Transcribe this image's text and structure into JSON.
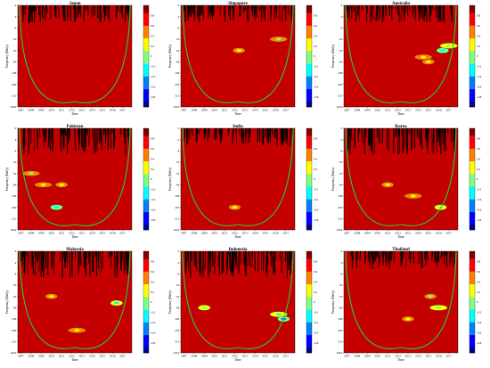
{
  "figure": {
    "colors": {
      "background": "#c40000",
      "coi": "#22cc44",
      "colormap": [
        "#00007f",
        "#0000ff",
        "#007fff",
        "#00ffff",
        "#7fff7f",
        "#ffff00",
        "#ff7f00",
        "#ff0000",
        "#7f0000"
      ]
    }
  },
  "chart_data": [
    {
      "type": "heatmap",
      "title": "Japan",
      "xlabel": "Time",
      "ylabel": "Frequency (Daily)",
      "x_ticks": [
        "2007",
        "2008",
        "2009",
        "2010",
        "2011",
        "2012",
        "2013",
        "2014",
        "2015",
        "2016",
        "2017"
      ],
      "y_ticks": [
        "2",
        "4",
        "8",
        "16",
        "32",
        "64",
        "128",
        "256",
        "512",
        "1024"
      ],
      "colorbar_ticks": [
        "0.8",
        "0.6",
        "0.4",
        "0.2",
        "0",
        "-0.2",
        "-0.4",
        "-0.6",
        "-0.8"
      ],
      "clim": [
        -1,
        1
      ],
      "hotspots": []
    },
    {
      "type": "heatmap",
      "title": "Singapore",
      "xlabel": "Time",
      "ylabel": "Frequency (Daily)",
      "x_ticks": [
        "2007",
        "2008",
        "2009",
        "2010",
        "2011",
        "2012",
        "2013",
        "2014",
        "2015",
        "2016",
        "2017"
      ],
      "y_ticks": [
        "2",
        "4",
        "8",
        "16",
        "32",
        "64",
        "128",
        "256",
        "512",
        "1024"
      ],
      "colorbar_ticks": [
        "0.8",
        "0.6",
        "0.4",
        "0.2",
        "0",
        "-0.2",
        "-0.4",
        "-0.6",
        "-0.8"
      ],
      "clim": [
        -1,
        1
      ],
      "hotspots": [
        {
          "year": 2012.4,
          "period": 32,
          "value": 0.55
        },
        {
          "year": 2016.3,
          "period": 16,
          "value": 0.45
        }
      ]
    },
    {
      "type": "heatmap",
      "title": "Australia",
      "xlabel": "Time",
      "ylabel": "Frequency (Daily)",
      "x_ticks": [
        "2007",
        "2008",
        "2009",
        "2010",
        "2011",
        "2012",
        "2013",
        "2014",
        "2015",
        "2016",
        "2017"
      ],
      "y_ticks": [
        "2",
        "4",
        "8",
        "16",
        "32",
        "64",
        "128",
        "256",
        "512",
        "1024"
      ],
      "colorbar_ticks": [
        "0.8",
        "0.6",
        "0.4",
        "0.2",
        "0",
        "-0.2",
        "-0.4",
        "-0.6",
        "-0.8"
      ],
      "clim": [
        -1,
        1
      ],
      "hotspots": [
        {
          "year": 2016.4,
          "period": 32,
          "value": 0.1
        },
        {
          "year": 2017.0,
          "period": 24,
          "value": 0.35
        },
        {
          "year": 2015.0,
          "period": 64,
          "value": 0.5
        },
        {
          "year": 2014.5,
          "period": 48,
          "value": 0.55
        }
      ]
    },
    {
      "type": "heatmap",
      "title": "Pakistan",
      "xlabel": "Time",
      "ylabel": "Frequency (Daily)",
      "x_ticks": [
        "2007",
        "2008",
        "2009",
        "2010",
        "2011",
        "2012",
        "2013",
        "2014",
        "2015",
        "2016",
        "2017"
      ],
      "y_ticks": [
        "2",
        "4",
        "8",
        "16",
        "32",
        "64",
        "128",
        "256",
        "512",
        "1024"
      ],
      "colorbar_ticks": [
        "0.8",
        "0.6",
        "0.4",
        "0.2",
        "0",
        "-0.2",
        "-0.4",
        "-0.6",
        "-0.8"
      ],
      "clim": [
        -1,
        1
      ],
      "hotspots": [
        {
          "year": 2010.5,
          "period": 256,
          "value": 0.1
        },
        {
          "year": 2009.2,
          "period": 64,
          "value": 0.5
        },
        {
          "year": 2011.0,
          "period": 64,
          "value": 0.5
        },
        {
          "year": 2008.0,
          "period": 32,
          "value": 0.45
        }
      ]
    },
    {
      "type": "heatmap",
      "title": "India",
      "xlabel": "Time",
      "ylabel": "Frequency (Daily)",
      "x_ticks": [
        "2007",
        "2008",
        "2009",
        "2010",
        "2011",
        "2012",
        "2013",
        "2014",
        "2015",
        "2016",
        "2017"
      ],
      "y_ticks": [
        "2",
        "4",
        "8",
        "16",
        "32",
        "64",
        "128",
        "256",
        "512",
        "1024"
      ],
      "colorbar_ticks": [
        "0.8",
        "0.6",
        "0.4",
        "0.2",
        "0",
        "-0.2",
        "-0.4",
        "-0.6",
        "-0.8"
      ],
      "clim": [
        -1,
        1
      ],
      "hotspots": [
        {
          "year": 2012.0,
          "period": 256,
          "value": 0.6
        }
      ]
    },
    {
      "type": "heatmap",
      "title": "Korea",
      "xlabel": "Time",
      "ylabel": "Frequency (Daily)",
      "x_ticks": [
        "2007",
        "2008",
        "2009",
        "2010",
        "2011",
        "2012",
        "2013",
        "2014",
        "2015",
        "2016",
        "2017"
      ],
      "y_ticks": [
        "2",
        "4",
        "8",
        "16",
        "32",
        "64",
        "128",
        "256",
        "512",
        "1024"
      ],
      "colorbar_ticks": [
        "0.8",
        "0.6",
        "0.4",
        "0.2",
        "0",
        "-0.2",
        "-0.4",
        "-0.6",
        "-0.8"
      ],
      "clim": [
        -1,
        1
      ],
      "hotspots": [
        {
          "year": 2016.2,
          "period": 256,
          "value": 0.25
        },
        {
          "year": 2013.5,
          "period": 128,
          "value": 0.6
        },
        {
          "year": 2011.0,
          "period": 64,
          "value": 0.6
        }
      ]
    },
    {
      "type": "heatmap",
      "title": "Malaysia",
      "xlabel": "Time",
      "ylabel": "Frequency (Daily)",
      "x_ticks": [
        "2007",
        "2008",
        "2009",
        "2010",
        "2011",
        "2012",
        "2013",
        "2014",
        "2015",
        "2016",
        "2017"
      ],
      "y_ticks": [
        "2",
        "4",
        "8",
        "16",
        "32",
        "64",
        "128",
        "256",
        "512",
        "1024"
      ],
      "colorbar_ticks": [
        "0.8",
        "0.6",
        "0.4",
        "0.2",
        "0",
        "-0.2",
        "-0.4",
        "-0.6",
        "-0.8"
      ],
      "clim": [
        -1,
        1
      ],
      "hotspots": [
        {
          "year": 2016.4,
          "period": 48,
          "value": 0.2
        },
        {
          "year": 2012.5,
          "period": 256,
          "value": 0.6
        },
        {
          "year": 2010.0,
          "period": 32,
          "value": 0.55
        }
      ]
    },
    {
      "type": "heatmap",
      "title": "Indonesia",
      "xlabel": "Time",
      "ylabel": "Frequency (Daily)",
      "x_ticks": [
        "2007",
        "2008",
        "2009",
        "2010",
        "2011",
        "2012",
        "2013",
        "2014",
        "2015",
        "2016",
        "2017"
      ],
      "y_ticks": [
        "2",
        "4",
        "8",
        "16",
        "32",
        "64",
        "128",
        "256",
        "512",
        "1024"
      ],
      "colorbar_ticks": [
        "0.8",
        "0.6",
        "0.4",
        "0.2",
        "0",
        "-0.2",
        "-0.4",
        "-0.6",
        "-0.8"
      ],
      "clim": [
        -1,
        1
      ],
      "hotspots": [
        {
          "year": 2016.8,
          "period": 128,
          "value": -0.1
        },
        {
          "year": 2016.3,
          "period": 96,
          "value": 0.2
        },
        {
          "year": 2009.0,
          "period": 64,
          "value": 0.3
        }
      ]
    },
    {
      "type": "heatmap",
      "title": "Thailand",
      "xlabel": "Time",
      "ylabel": "Frequency (Daily)",
      "x_ticks": [
        "2007",
        "2008",
        "2009",
        "2010",
        "2011",
        "2012",
        "2013",
        "2014",
        "2015",
        "2016",
        "2017"
      ],
      "y_ticks": [
        "2",
        "4",
        "8",
        "16",
        "32",
        "64",
        "128",
        "256",
        "512",
        "1024"
      ],
      "colorbar_ticks": [
        "0.8",
        "0.6",
        "0.4",
        "0.2",
        "0",
        "-0.2",
        "-0.4",
        "-0.6",
        "-0.8"
      ],
      "clim": [
        -1,
        1
      ],
      "hotspots": [
        {
          "year": 2013.0,
          "period": 128,
          "value": 0.55
        },
        {
          "year": 2016.0,
          "period": 64,
          "value": 0.35
        },
        {
          "year": 2015.2,
          "period": 32,
          "value": 0.45
        }
      ]
    }
  ]
}
